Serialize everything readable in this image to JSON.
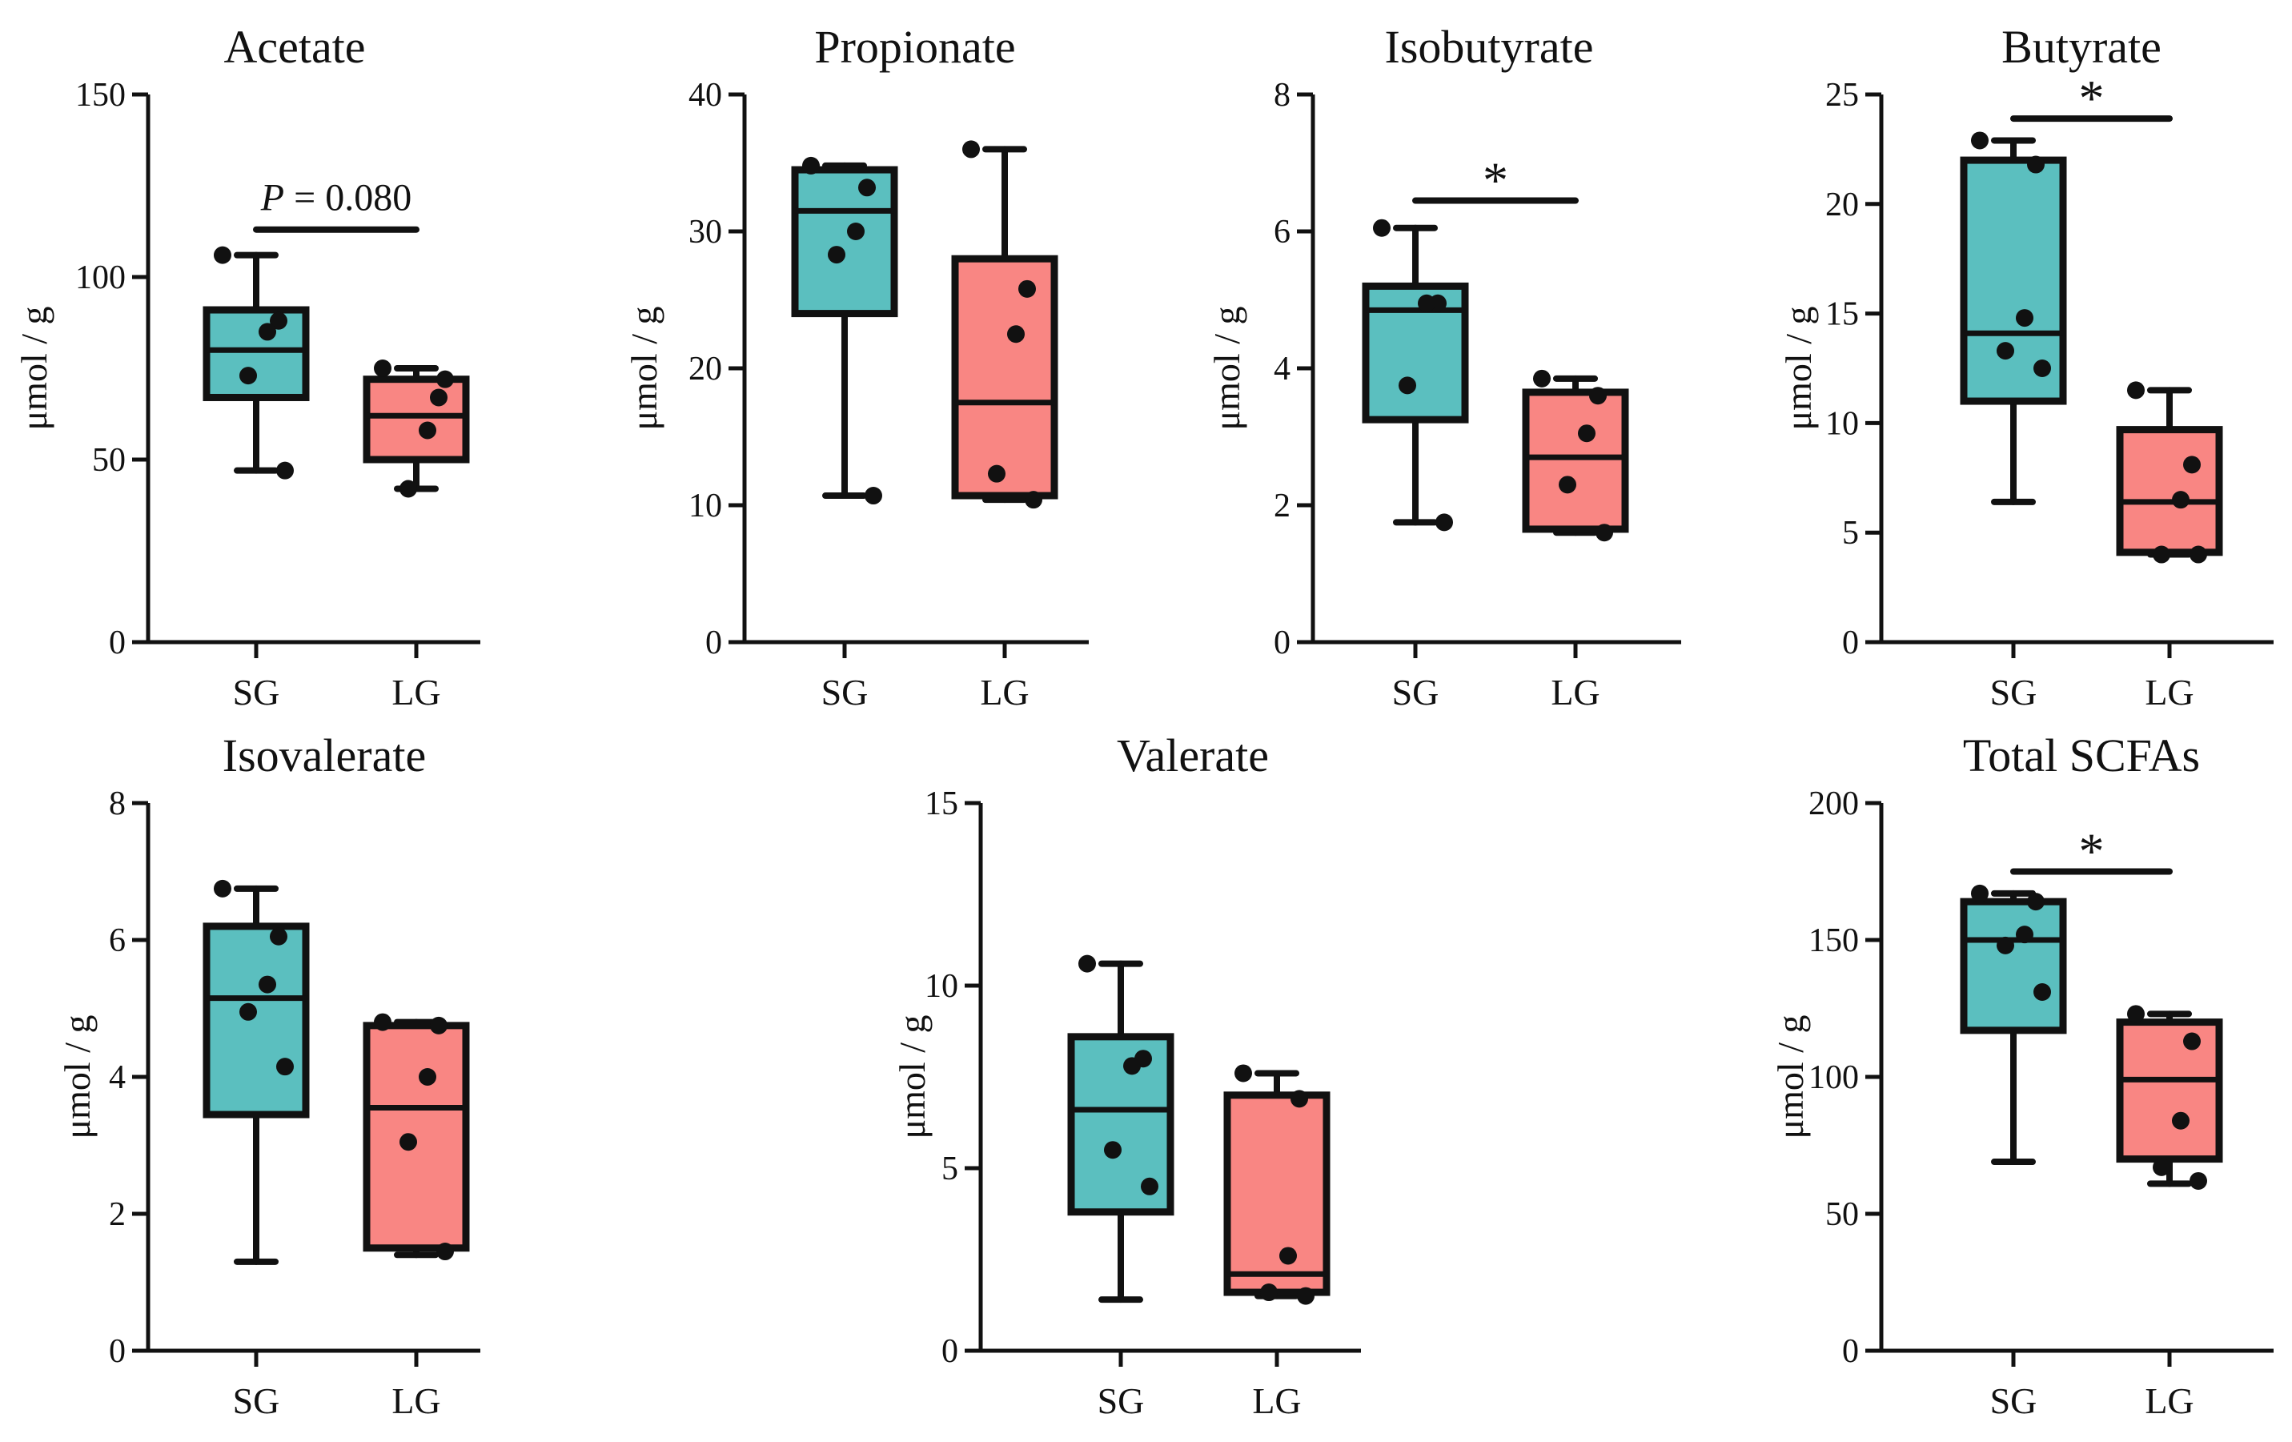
{
  "colors": {
    "SG": "#5bbfbf",
    "LG": "#f98683",
    "ink": "#111111"
  },
  "chart_data": [
    {
      "type": "box",
      "title": "Acetate",
      "ylabel": "μmol / g",
      "xlabel": "",
      "ylim": [
        0,
        150
      ],
      "yticks": [
        0,
        50,
        100,
        150
      ],
      "tick_labels": [
        "0",
        "50",
        "100",
        "150"
      ],
      "categories": [
        "SG",
        "LG"
      ],
      "groups": [
        {
          "name": "SG",
          "min": 47,
          "q1": 67,
          "median": 80,
          "q3": 91,
          "max": 106,
          "points": [
            106,
            88,
            85,
            73,
            47
          ]
        },
        {
          "name": "LG",
          "min": 42,
          "q1": 50,
          "median": 62,
          "q3": 72,
          "max": 75,
          "points": [
            75,
            67,
            58,
            42,
            72
          ]
        }
      ],
      "annotation": {
        "kind": "p",
        "italic": "P",
        "rest": " = 0.080",
        "y": 113
      }
    },
    {
      "type": "box",
      "title": "Propionate",
      "ylabel": "μmol / g",
      "xlabel": "",
      "ylim": [
        0,
        40
      ],
      "yticks": [
        0,
        10,
        20,
        30,
        40
      ],
      "tick_labels": [
        "0",
        "10",
        "20",
        "30",
        "40"
      ],
      "categories": [
        "SG",
        "LG"
      ],
      "groups": [
        {
          "name": "SG",
          "min": 10.7,
          "q1": 24,
          "median": 31.5,
          "q3": 34.5,
          "max": 34.8,
          "points": [
            34.8,
            33.2,
            30,
            28.3,
            10.7
          ]
        },
        {
          "name": "LG",
          "min": 10.4,
          "q1": 10.7,
          "median": 17.5,
          "q3": 28,
          "max": 36,
          "points": [
            36,
            25.8,
            22.5,
            12.3,
            10.4
          ]
        }
      ],
      "annotation": null
    },
    {
      "type": "box",
      "title": "Isobutyrate",
      "ylabel": "μmol / g",
      "xlabel": "",
      "ylim": [
        0,
        8
      ],
      "yticks": [
        0,
        2,
        4,
        6,
        8
      ],
      "tick_labels": [
        "0",
        "2",
        "4",
        "6",
        "8"
      ],
      "categories": [
        "SG",
        "LG"
      ],
      "groups": [
        {
          "name": "SG",
          "min": 1.75,
          "q1": 3.25,
          "median": 4.85,
          "q3": 5.2,
          "max": 6.05,
          "points": [
            6.05,
            4.95,
            4.95,
            3.75,
            1.75
          ]
        },
        {
          "name": "LG",
          "min": 1.6,
          "q1": 1.65,
          "median": 2.7,
          "q3": 3.65,
          "max": 3.85,
          "points": [
            3.85,
            3.6,
            3.05,
            2.3,
            1.6
          ]
        }
      ],
      "annotation": {
        "kind": "sig",
        "text": "*",
        "y": 6.45
      }
    },
    {
      "type": "box",
      "title": "Butyrate",
      "ylabel": "μmol / g",
      "xlabel": "",
      "ylim": [
        0,
        25
      ],
      "yticks": [
        0,
        5,
        10,
        15,
        20,
        25
      ],
      "tick_labels": [
        "0",
        "5",
        "10",
        "15",
        "20",
        "25"
      ],
      "categories": [
        "SG",
        "LG"
      ],
      "groups": [
        {
          "name": "SG",
          "min": 6.4,
          "q1": 11,
          "median": 14.1,
          "q3": 22,
          "max": 22.9,
          "points": [
            22.9,
            21.8,
            14.8,
            13.3,
            12.5
          ]
        },
        {
          "name": "LG",
          "min": 4,
          "q1": 4.1,
          "median": 6.4,
          "q3": 9.7,
          "max": 11.5,
          "points": [
            11.5,
            8.1,
            6.5,
            4.0,
            4.0
          ]
        }
      ],
      "annotation": {
        "kind": "sig",
        "text": "*",
        "y": 23.9
      }
    },
    {
      "type": "box",
      "title": "Isovalerate",
      "ylabel": "μmol / g",
      "xlabel": "",
      "ylim": [
        0,
        8
      ],
      "yticks": [
        0,
        2,
        4,
        6,
        8
      ],
      "tick_labels": [
        "0",
        "2",
        "4",
        "6",
        "8"
      ],
      "categories": [
        "SG",
        "LG"
      ],
      "groups": [
        {
          "name": "SG",
          "min": 1.3,
          "q1": 3.45,
          "median": 5.15,
          "q3": 6.2,
          "max": 6.75,
          "points": [
            6.75,
            6.05,
            5.35,
            4.95,
            4.15
          ]
        },
        {
          "name": "LG",
          "min": 1.4,
          "q1": 1.5,
          "median": 3.55,
          "q3": 4.75,
          "max": 4.8,
          "points": [
            4.8,
            4.75,
            4.0,
            3.05,
            1.45
          ]
        }
      ],
      "annotation": null
    },
    {
      "type": "box",
      "title": "Valerate",
      "ylabel": "μmol / g",
      "xlabel": "",
      "ylim": [
        0,
        15
      ],
      "yticks": [
        0,
        5,
        10,
        15
      ],
      "tick_labels": [
        "0",
        "5",
        "10",
        "15"
      ],
      "categories": [
        "SG",
        "LG"
      ],
      "groups": [
        {
          "name": "SG",
          "min": 1.4,
          "q1": 3.8,
          "median": 6.6,
          "q3": 8.6,
          "max": 10.6,
          "points": [
            10.6,
            8.0,
            7.8,
            5.5,
            4.5
          ]
        },
        {
          "name": "LG",
          "min": 1.5,
          "q1": 1.6,
          "median": 2.1,
          "q3": 7.0,
          "max": 7.6,
          "points": [
            7.6,
            6.9,
            2.6,
            1.6,
            1.5
          ]
        }
      ],
      "annotation": null
    },
    {
      "type": "box",
      "title": "Total SCFAs",
      "ylabel": "μmol / g",
      "xlabel": "",
      "ylim": [
        0,
        200
      ],
      "yticks": [
        0,
        50,
        100,
        150,
        200
      ],
      "tick_labels": [
        "0",
        "50",
        "100",
        "150",
        "200"
      ],
      "categories": [
        "SG",
        "LG"
      ],
      "groups": [
        {
          "name": "SG",
          "min": 69,
          "q1": 117,
          "median": 150,
          "q3": 164,
          "max": 167,
          "points": [
            167,
            164,
            152,
            148,
            131
          ]
        },
        {
          "name": "LG",
          "min": 61,
          "q1": 70,
          "median": 99,
          "q3": 120,
          "max": 123,
          "points": [
            123,
            113,
            84,
            67,
            62
          ]
        }
      ],
      "annotation": {
        "kind": "sig",
        "text": "*",
        "y": 175
      }
    }
  ]
}
